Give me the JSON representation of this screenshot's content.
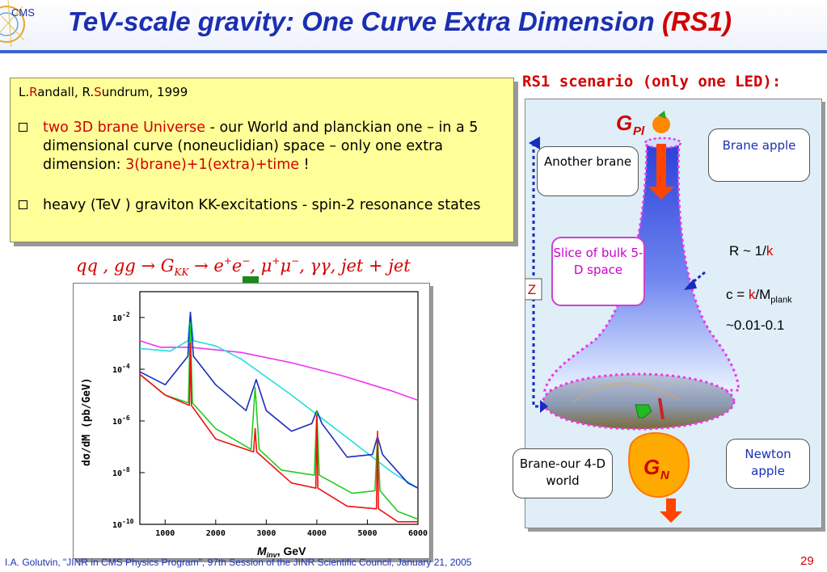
{
  "header": {
    "logo_text": "CMS",
    "title_main": "TeV-scale gravity: One Curve Extra Dimension ",
    "title_accent": "(RS1)"
  },
  "refbox": {
    "ref_l": "L.",
    "ref_r1": "R",
    "ref_mid": "andall, R.",
    "ref_s": "S",
    "ref_end": "undrum, 1999",
    "bullet1_red": "two 3D brane Universe",
    "bullet1_text": " - our World and planckian one – in a 5 dimensional curve (noneuclidian) space – only one extra dimension: ",
    "bullet1_red2": "3(brane)+1(extra)+time",
    "bullet1_end": " !",
    "bullet2": "heavy (TeV ) graviton KK-excitations - spin-2 resonance states"
  },
  "formula": {
    "part1": "qq , gg → G",
    "sub_kk": "KK",
    "part2": " → e",
    "sup_plus": "+",
    "part3": "e",
    "sup_minus": "−",
    "part4": ", μ",
    "part5": "μ",
    "part6": ", γγ, jet + jet"
  },
  "plot": {
    "xlabel_m": "M",
    "xlabel_sub": "inv",
    "xlabel_unit": ", GeV",
    "ylabel": "dσ/dM (pb/GeV)"
  },
  "chart_data": {
    "type": "line",
    "xlabel": "M inv, GeV",
    "ylabel": "dσ/dM (pb/GeV)",
    "xlim": [
      500,
      6000
    ],
    "ylim_log10": [
      -10,
      -1
    ],
    "x_ticks": [
      "1000",
      "2000",
      "3000",
      "4000",
      "5000",
      "6000"
    ],
    "y_ticks": [
      "10",
      "10",
      "10",
      "10",
      "10"
    ],
    "y_tick_exponents": [
      "-2",
      "-4",
      "-6",
      "-8",
      "-10"
    ],
    "y_tick_values_log10": [
      -2,
      -4,
      -6,
      -8,
      -10
    ],
    "series": [
      {
        "color": "#ee33ee",
        "x": [
          500,
          900,
          1500,
          2500,
          3500,
          4500,
          5500,
          6000
        ],
        "log10y": [
          -2.9,
          -3.15,
          -3.15,
          -3.35,
          -3.75,
          -4.25,
          -4.85,
          -5.2
        ]
      },
      {
        "color": "#22dddd",
        "x": [
          500,
          1100,
          1450,
          1500,
          1560,
          2000,
          2500,
          3000,
          3500,
          4500,
          5500,
          6000
        ],
        "log10y": [
          -3.2,
          -3.3,
          -2.9,
          -1.8,
          -2.9,
          -3.1,
          -3.6,
          -4.3,
          -5.0,
          -6.5,
          -8.0,
          -8.6
        ]
      },
      {
        "color": "#1a2bbf",
        "x": [
          500,
          1000,
          1450,
          1500,
          1560,
          2000,
          2600,
          2800,
          3000,
          3500,
          3900,
          4000,
          4100,
          4600,
          5100,
          5200,
          5300,
          5800,
          6000
        ],
        "log10y": [
          -4.1,
          -4.6,
          -3.5,
          -1.8,
          -3.5,
          -4.6,
          -5.6,
          -4.4,
          -5.6,
          -6.4,
          -6.1,
          -5.6,
          -6.1,
          -7.4,
          -7.3,
          -6.6,
          -7.3,
          -8.4,
          -8.6
        ]
      },
      {
        "color": "#22cc22",
        "x": [
          500,
          1000,
          1460,
          1500,
          1540,
          2000,
          2700,
          2780,
          2860,
          3300,
          3950,
          4000,
          4050,
          4700,
          5150,
          5200,
          5250,
          5600,
          6000
        ],
        "log10y": [
          -4.2,
          -5.0,
          -5.3,
          -2.2,
          -5.3,
          -6.3,
          -7.1,
          -4.7,
          -7.1,
          -7.9,
          -8.1,
          -5.6,
          -8.1,
          -8.8,
          -8.7,
          -6.6,
          -8.7,
          -9.5,
          -9.8
        ]
      },
      {
        "color": "#ee1111",
        "x": [
          500,
          1000,
          1480,
          1500,
          1520,
          2000,
          2750,
          2780,
          2810,
          3500,
          3980,
          4000,
          4020,
          4600,
          5180,
          5200,
          5220,
          5600,
          6000
        ],
        "log10y": [
          -4.2,
          -5.0,
          -5.4,
          -3.0,
          -5.4,
          -6.7,
          -7.2,
          -6.3,
          -7.2,
          -8.4,
          -8.6,
          -5.8,
          -8.6,
          -9.3,
          -9.4,
          -6.4,
          -9.4,
          -9.9,
          -9.9
        ]
      }
    ]
  },
  "scenario": {
    "title": "RS1 scenario (only one LED):",
    "g_pl": "G",
    "g_pl_sub": "Pl",
    "g_n": "G",
    "g_n_sub": "N",
    "another_brane": "Another brane",
    "brane_apple": "Brane apple",
    "slice": "Slice of bulk 5-D space",
    "z_label": "Z",
    "r_text": "R ~ 1/",
    "k": "k",
    "c_text": "c = ",
    "c_mid": "/M",
    "c_sub": "plank",
    "range": "~0.01-0.1",
    "brane_our": "Brane-our 4-D world",
    "newton_apple": "Newton apple"
  },
  "footer": {
    "text": "I.A. Golutvin, \"JINR in CMS Physics Program\", 97th Session of the JINR Scientific Council, January 21, 2005",
    "page": "29"
  },
  "colors": {
    "title_blue": "#1b2fb3",
    "accent_red": "#d10000",
    "box_yellow": "#ffff99",
    "panel_blue": "#dfeef7"
  }
}
